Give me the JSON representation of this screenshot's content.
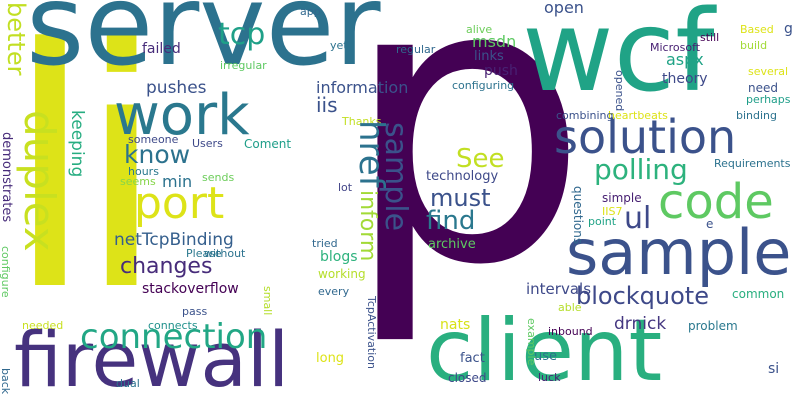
{
  "words": [
    {
      "text": "li",
      "color": "#dde318"
    },
    {
      "text": "p",
      "color": "#440154"
    },
    {
      "text": "server",
      "color": "#2c728e"
    },
    {
      "text": "wcf",
      "color": "#20a386"
    },
    {
      "text": "firewall",
      "color": "#46327e"
    },
    {
      "text": "client",
      "color": "#29af7f"
    },
    {
      "text": "sample",
      "color": "#3b528b"
    },
    {
      "text": "duplex",
      "color": "#c8e020"
    },
    {
      "text": "work",
      "color": "#2a788e"
    },
    {
      "text": "port",
      "color": "#dde318"
    },
    {
      "text": "solution",
      "color": "#3b528b"
    },
    {
      "text": "code",
      "color": "#5ec962"
    },
    {
      "text": "href",
      "color": "#2c728e"
    },
    {
      "text": "connection",
      "color": "#22a785"
    },
    {
      "text": "sample",
      "color": "#3b528b"
    },
    {
      "text": "tcp",
      "color": "#1fa088"
    },
    {
      "text": "polling",
      "color": "#2db27d"
    },
    {
      "text": "better",
      "color": "#c2df23"
    },
    {
      "text": "know",
      "color": "#2c728e"
    },
    {
      "text": "inform",
      "color": "#a2da37"
    },
    {
      "text": "find",
      "color": "#2a788e"
    },
    {
      "text": "must",
      "color": "#3b528b"
    },
    {
      "text": "See",
      "color": "#c2df23"
    },
    {
      "text": "changes",
      "color": "#472c7a"
    },
    {
      "text": "blockquote",
      "color": "#3e4989"
    },
    {
      "text": "ul",
      "color": "#3e4989"
    },
    {
      "text": "information",
      "color": "#3b528b"
    },
    {
      "text": "netTcpBinding",
      "color": "#355f8d"
    },
    {
      "text": "pushes",
      "color": "#3b528b"
    },
    {
      "text": "keeping",
      "color": "#27ad81"
    },
    {
      "text": "iis",
      "color": "#3b528b"
    },
    {
      "text": "min",
      "color": "#2c728e"
    },
    {
      "text": "open",
      "color": "#3b528b"
    },
    {
      "text": "msdn",
      "color": "#5ec962"
    },
    {
      "text": "aspx",
      "color": "#20a386"
    },
    {
      "text": "theory",
      "color": "#3e4989"
    },
    {
      "text": "failed",
      "color": "#472c7a"
    },
    {
      "text": "push",
      "color": "#482173"
    },
    {
      "text": "links",
      "color": "#3b528b"
    },
    {
      "text": "blogs",
      "color": "#2db27d"
    },
    {
      "text": "stackoverflow",
      "color": "#440154"
    },
    {
      "text": "archive",
      "color": "#5ec962"
    },
    {
      "text": "technology",
      "color": "#3e4989"
    },
    {
      "text": "intervals",
      "color": "#3e4989"
    },
    {
      "text": "drnick",
      "color": "#453781"
    },
    {
      "text": "nats",
      "color": "#d8e219"
    },
    {
      "text": "fact",
      "color": "#3b528b"
    },
    {
      "text": "long",
      "color": "#dde318"
    },
    {
      "text": "use",
      "color": "#2c728e"
    },
    {
      "text": "working",
      "color": "#b5de2b"
    },
    {
      "text": "demonstrates",
      "color": "#472c7a"
    },
    {
      "text": "problem",
      "color": "#2a788e"
    },
    {
      "text": "common",
      "color": "#29af7f"
    },
    {
      "text": "questions",
      "color": "#31688e"
    },
    {
      "text": "simple",
      "color": "#482173"
    },
    {
      "text": "need",
      "color": "#3b528b"
    },
    {
      "text": "configuring",
      "color": "#2c728e"
    },
    {
      "text": "Thanks",
      "color": "#c2df23"
    },
    {
      "text": "Coment",
      "color": "#1f9e89"
    },
    {
      "text": "Users",
      "color": "#3e4989"
    },
    {
      "text": "someone",
      "color": "#3e4989"
    },
    {
      "text": "hours",
      "color": "#2a788e"
    },
    {
      "text": "seems",
      "color": "#86d549"
    },
    {
      "text": "sends",
      "color": "#6ccd5a"
    },
    {
      "text": "Please",
      "color": "#2a788e"
    },
    {
      "text": "without",
      "color": "#2c728e"
    },
    {
      "text": "tried",
      "color": "#31688e"
    },
    {
      "text": "lot",
      "color": "#414487"
    },
    {
      "text": "every",
      "color": "#31688e"
    },
    {
      "text": "pass",
      "color": "#3b528b"
    },
    {
      "text": "connects",
      "color": "#21918c"
    },
    {
      "text": "needed",
      "color": "#c8e020"
    },
    {
      "text": "dual",
      "color": "#2c728e"
    },
    {
      "text": "back",
      "color": "#31688e"
    },
    {
      "text": "small",
      "color": "#b5de2b"
    },
    {
      "text": "configure",
      "color": "#5ec962"
    },
    {
      "text": "regular",
      "color": "#31688e"
    },
    {
      "text": "yet",
      "color": "#2c728e"
    },
    {
      "text": "app",
      "color": "#31688e"
    },
    {
      "text": "irregular",
      "color": "#5ec962"
    },
    {
      "text": "alive",
      "color": "#6ccd5a"
    },
    {
      "text": "still",
      "color": "#440154"
    },
    {
      "text": "Microsoft",
      "color": "#482173"
    },
    {
      "text": "Based",
      "color": "#dde318"
    },
    {
      "text": "g",
      "color": "#3b528b"
    },
    {
      "text": "build",
      "color": "#a2da37"
    },
    {
      "text": "several",
      "color": "#dde318"
    },
    {
      "text": "perhaps",
      "color": "#1f9e89"
    },
    {
      "text": "opened",
      "color": "#3b528b"
    },
    {
      "text": "heartbeats",
      "color": "#dde318"
    },
    {
      "text": "combining",
      "color": "#3b528b"
    },
    {
      "text": "binding",
      "color": "#2c728e"
    },
    {
      "text": "Requirements",
      "color": "#2c728e"
    },
    {
      "text": "IIS7",
      "color": "#dde318"
    },
    {
      "text": "point",
      "color": "#20a386"
    },
    {
      "text": "e",
      "color": "#3b528b"
    },
    {
      "text": "able",
      "color": "#b5de2b"
    },
    {
      "text": "inbound",
      "color": "#440154"
    },
    {
      "text": "example",
      "color": "#5ec962"
    },
    {
      "text": "TcpActivation",
      "color": "#3b528b"
    },
    {
      "text": "closed",
      "color": "#3e4989"
    },
    {
      "text": "luck",
      "color": "#482173"
    },
    {
      "text": "si",
      "color": "#3b528b"
    }
  ]
}
